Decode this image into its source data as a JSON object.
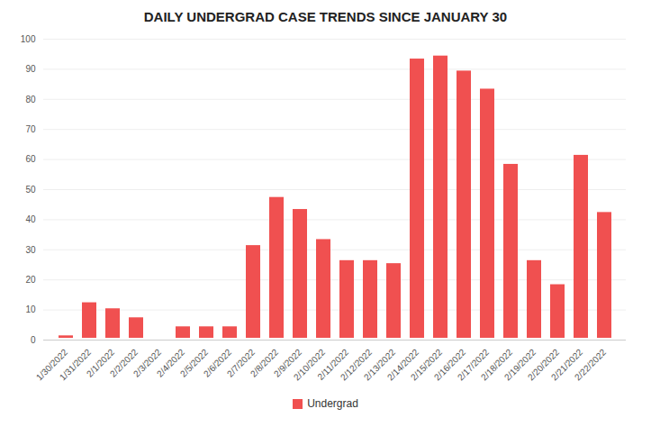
{
  "chart_data": {
    "type": "bar",
    "title": "DAILY UNDERGRAD CASE TRENDS SINCE JANUARY 30",
    "categories": [
      "1/30/2022",
      "1/31/2022",
      "2/1/2022",
      "2/2/2022",
      "2/3/2022",
      "2/4/2022",
      "2/5/2022",
      "2/6/2022",
      "2/7/2022",
      "2/8/2022",
      "2/9/2022",
      "2/10/2022",
      "2/11/2022",
      "2/12/2022",
      "2/13/2022",
      "2/14/2022",
      "2/15/2022",
      "2/16/2022",
      "2/17/2022",
      "2/18/2022",
      "2/19/2022",
      "2/20/2022",
      "2/21/2022",
      "2/22/2022"
    ],
    "series": [
      {
        "name": "Undergrad",
        "color": "#f05050",
        "values": [
          2,
          13,
          11,
          8,
          1,
          5,
          5,
          5,
          32,
          48,
          44,
          34,
          27,
          27,
          26,
          94,
          95,
          90,
          84,
          59,
          27,
          19,
          62,
          43
        ]
      }
    ],
    "ylim": [
      0,
      100
    ],
    "yticks": [
      0,
      10,
      20,
      30,
      40,
      50,
      60,
      70,
      80,
      90,
      100
    ],
    "grid": true,
    "legend": "bottom"
  }
}
